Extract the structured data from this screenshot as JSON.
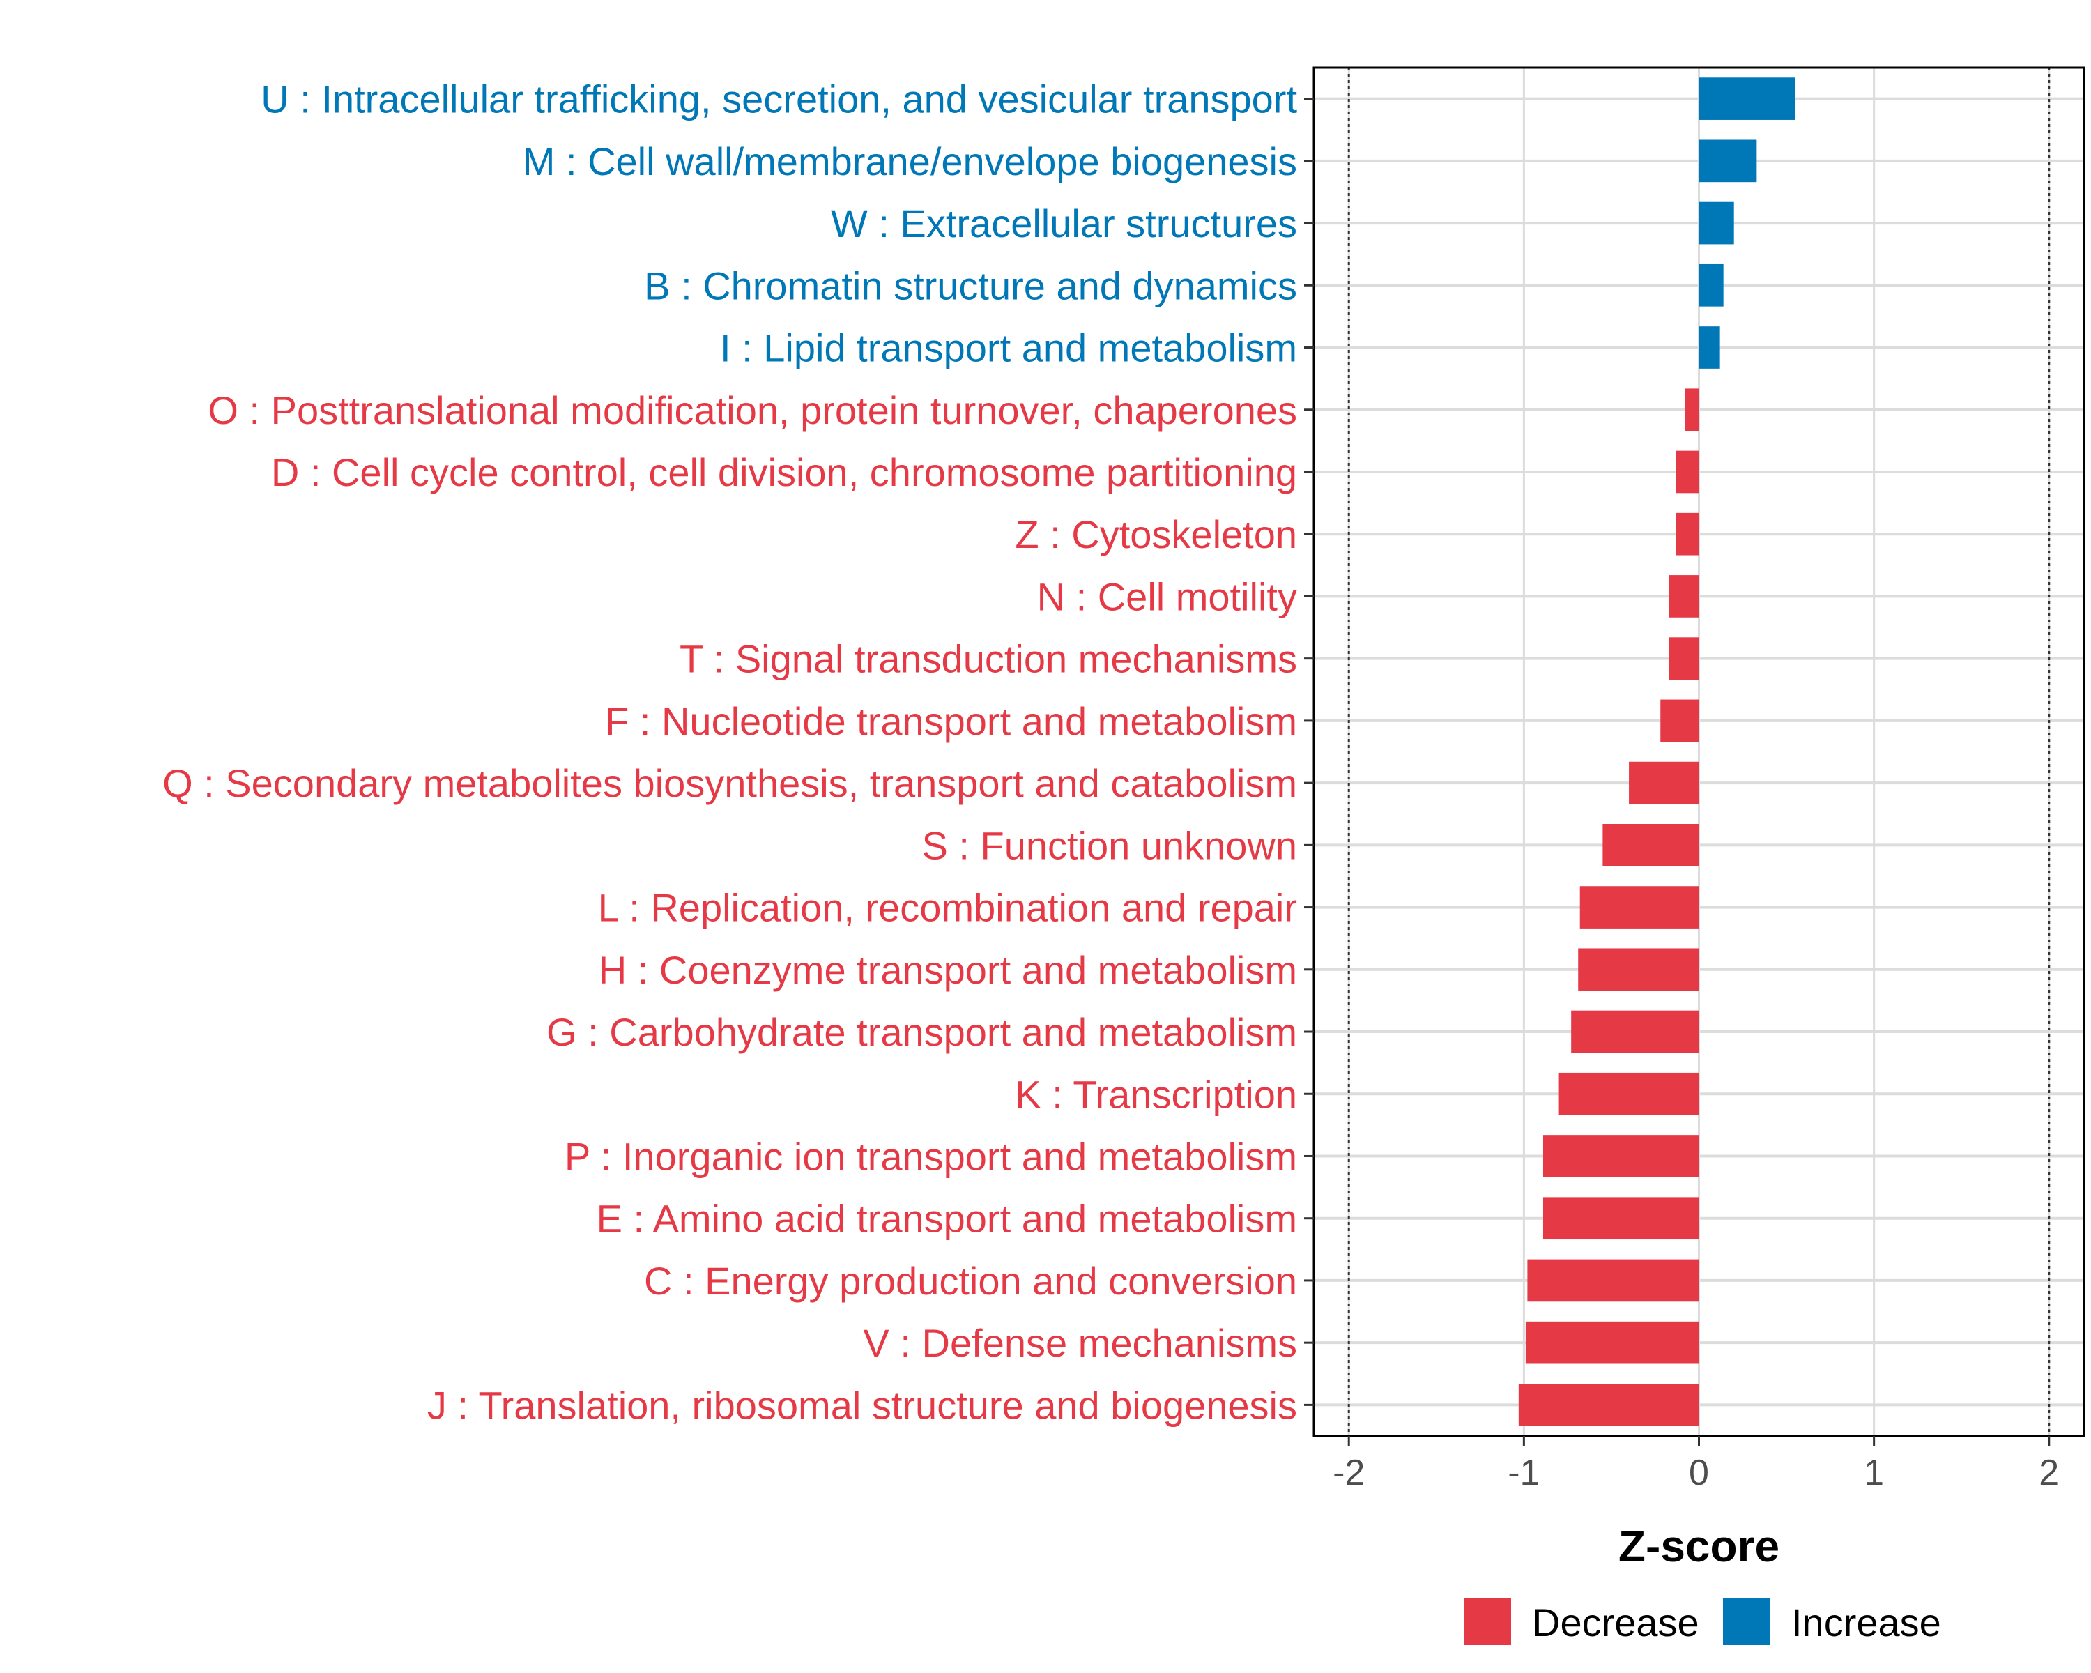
{
  "chart_data": {
    "type": "bar",
    "orientation": "horizontal",
    "xlabel": "Z-score",
    "ylabel": "",
    "xlim": [
      -2.2,
      2.2
    ],
    "xticks": [
      -2,
      -1,
      0,
      1,
      2
    ],
    "xtick_labels": [
      "-2",
      "-1",
      "0",
      "1",
      "2"
    ],
    "reference_lines": [
      -2,
      2
    ],
    "grid": true,
    "categories": [
      "U : Intracellular trafficking, secretion, and vesicular transport",
      "M : Cell wall/membrane/envelope biogenesis",
      "W : Extracellular structures",
      "B : Chromatin structure and dynamics",
      "I : Lipid transport and metabolism",
      "O : Posttranslational modification, protein turnover, chaperones",
      "D : Cell cycle control, cell division, chromosome partitioning",
      "Z : Cytoskeleton",
      "N : Cell motility",
      "T : Signal transduction mechanisms",
      "F : Nucleotide transport and metabolism",
      "Q : Secondary metabolites biosynthesis, transport and catabolism",
      "S : Function unknown",
      "L : Replication, recombination and repair",
      "H : Coenzyme transport and metabolism",
      "G : Carbohydrate transport and metabolism",
      "K : Transcription",
      "P : Inorganic ion transport and metabolism",
      "E : Amino acid transport and metabolism",
      "C : Energy production and conversion",
      "V : Defense mechanisms",
      "J : Translation, ribosomal structure and biogenesis"
    ],
    "values": [
      0.55,
      0.33,
      0.2,
      0.14,
      0.12,
      -0.08,
      -0.13,
      -0.13,
      -0.17,
      -0.17,
      -0.22,
      -0.4,
      -0.55,
      -0.68,
      -0.69,
      -0.73,
      -0.8,
      -0.89,
      -0.89,
      -0.98,
      -0.99,
      -1.03
    ],
    "series": [
      {
        "name": "Decrease",
        "color": "#E63946"
      },
      {
        "name": "Increase",
        "color": "#0077B6"
      }
    ],
    "legend_position": "bottom-right"
  }
}
